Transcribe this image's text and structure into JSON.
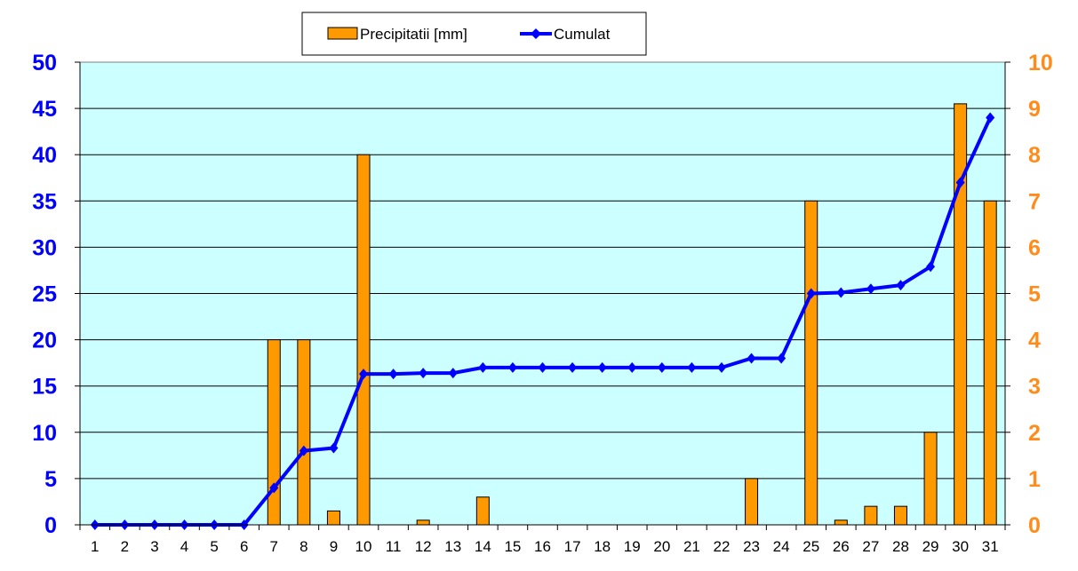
{
  "chart_data": {
    "type": "bar",
    "categories": [
      "1",
      "2",
      "3",
      "4",
      "5",
      "6",
      "7",
      "8",
      "9",
      "10",
      "11",
      "12",
      "13",
      "14",
      "15",
      "16",
      "17",
      "18",
      "19",
      "20",
      "21",
      "22",
      "23",
      "24",
      "25",
      "26",
      "27",
      "28",
      "29",
      "30",
      "31"
    ],
    "series": [
      {
        "name": "Precipitatii [mm]",
        "type": "bar",
        "axis": "right",
        "color": "#ff9900",
        "values": [
          0,
          0,
          0,
          0,
          0,
          0,
          4.0,
          4.0,
          0.3,
          8.0,
          0,
          0.1,
          0,
          0.6,
          0,
          0,
          0,
          0,
          0,
          0,
          0,
          0,
          1.0,
          0,
          7.0,
          0.1,
          0.4,
          0.4,
          2.0,
          9.1,
          7.0
        ]
      },
      {
        "name": "Cumulat",
        "type": "line",
        "axis": "left",
        "color": "#0000ff",
        "values": [
          0,
          0,
          0,
          0,
          0,
          0,
          4.0,
          8.0,
          8.3,
          16.3,
          16.3,
          16.4,
          16.4,
          17.0,
          17.0,
          17.0,
          17.0,
          17.0,
          17.0,
          17.0,
          17.0,
          17.0,
          18.0,
          18.0,
          25.0,
          25.1,
          25.5,
          25.9,
          27.9,
          37.0,
          44.0
        ]
      }
    ],
    "left_axis": {
      "min": 0,
      "max": 50,
      "step": 5,
      "ticks": [
        "0",
        "5",
        "10",
        "15",
        "20",
        "25",
        "30",
        "35",
        "40",
        "45",
        "50"
      ],
      "color": "#0000ff"
    },
    "right_axis": {
      "min": 0,
      "max": 10,
      "step": 1,
      "ticks": [
        "0",
        "1",
        "2",
        "3",
        "4",
        "5",
        "6",
        "7",
        "8",
        "9",
        "10"
      ],
      "color": "#ff8c1a"
    },
    "plot_background": "#ccffff",
    "grid": true,
    "legend_position": "top-center",
    "title": "",
    "xlabel": "",
    "ylabel": ""
  }
}
